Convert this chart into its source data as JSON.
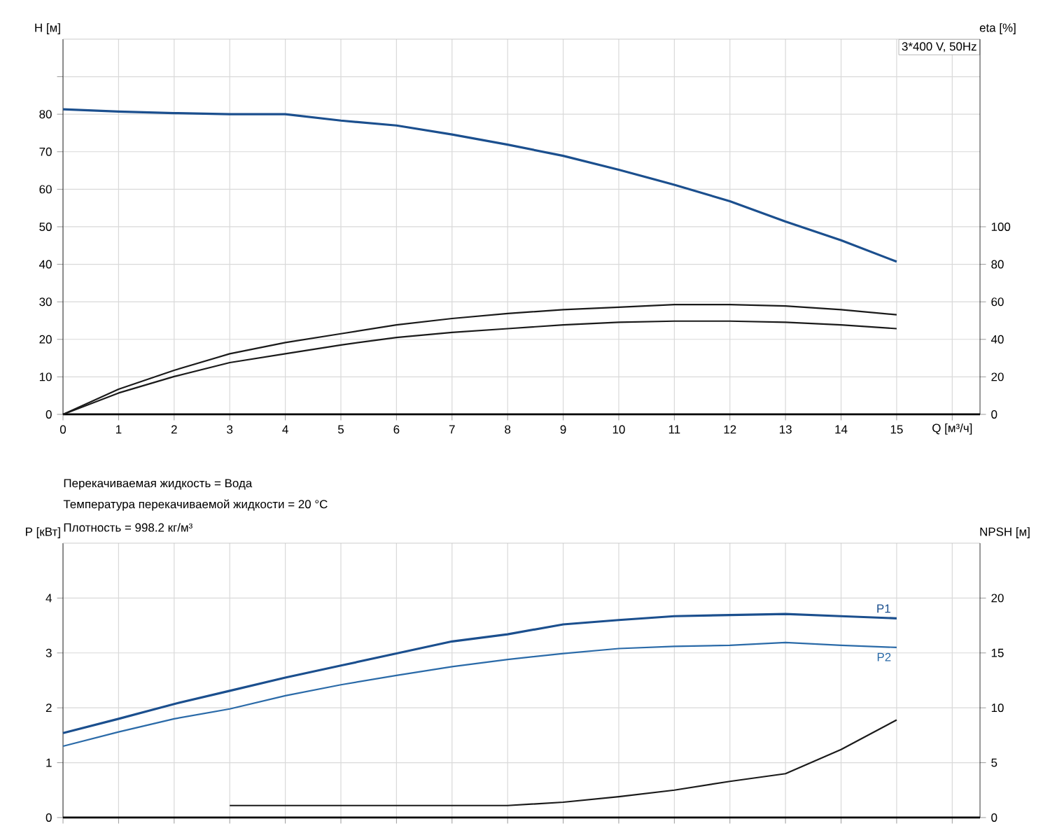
{
  "chart_data": [
    {
      "type": "line",
      "annotations": [
        "3*400 V, 50Hz"
      ],
      "xlabel": "Q [м³/ч]",
      "ylabel": "H [м]",
      "y2label": "eta [%]",
      "x": [
        0,
        1,
        2,
        3,
        4,
        5,
        6,
        7,
        8,
        9,
        10,
        11,
        12,
        13,
        14,
        15
      ],
      "xlim": [
        0,
        16.5
      ],
      "xticks": [
        0,
        1,
        2,
        3,
        4,
        5,
        6,
        7,
        8,
        9,
        10,
        11,
        12,
        13,
        14,
        15,
        {
          "value": 16,
          "label": null
        }
      ],
      "ylim": [
        0,
        100
      ],
      "yticks": [
        0,
        10,
        20,
        30,
        40,
        50,
        60,
        70,
        80,
        {
          "value": 90,
          "label": null
        }
      ],
      "y2lim": [
        0,
        200
      ],
      "y2ticks": [
        0,
        20,
        40,
        60,
        80,
        100
      ],
      "grid": true,
      "series": [
        {
          "color": "#1b4f8e",
          "values": [
            81.3,
            80.7,
            80.3,
            80.0,
            80.0,
            78.3,
            77.0,
            74.6,
            71.9,
            68.9,
            65.2,
            61.2,
            56.8,
            51.4,
            46.4,
            40.7
          ]
        },
        {
          "color": "#1a1a1a",
          "axis": "y2",
          "values": [
            0,
            13.4,
            23.5,
            32.3,
            38.3,
            43.0,
            47.7,
            51.1,
            53.8,
            55.8,
            57.1,
            58.5,
            58.5,
            57.8,
            55.8,
            53.1
          ]
        },
        {
          "color": "#1a1a1a",
          "axis": "y2",
          "values": [
            0,
            11.4,
            20.2,
            27.6,
            32.3,
            37.0,
            41.0,
            43.7,
            45.7,
            47.7,
            49.1,
            49.7,
            49.7,
            49.1,
            47.7,
            45.7
          ]
        }
      ]
    },
    {
      "type": "line",
      "annotations": [
        "Перекачиваемая жидкость = Вода",
        "Температура перекачиваемой жидкости = 20 °C",
        "Плотность = 998.2 кг/м³"
      ],
      "ylabel": "P [кВт]",
      "y2label": "NPSH [м]",
      "x": [
        0,
        1,
        2,
        3,
        4,
        5,
        6,
        7,
        8,
        9,
        10,
        11,
        12,
        13,
        14,
        15
      ],
      "xlim": [
        0,
        16.5
      ],
      "xticks": [
        0,
        1,
        2,
        3,
        4,
        5,
        6,
        7,
        8,
        9,
        10,
        11,
        12,
        13,
        14,
        15,
        16
      ],
      "tick_labels": "y",
      "ylim": [
        0,
        5
      ],
      "yticks": [
        0,
        1,
        2,
        3,
        4
      ],
      "y2lim": [
        0,
        25
      ],
      "y2ticks": [
        0,
        5,
        10,
        15,
        20
      ],
      "grid": true,
      "series": [
        {
          "name": "P1",
          "color": "#1b4f8e",
          "values": [
            1.54,
            1.8,
            2.07,
            2.31,
            2.55,
            2.77,
            2.99,
            3.21,
            3.34,
            3.52,
            3.6,
            3.67,
            3.69,
            3.71,
            3.67,
            3.63
          ]
        },
        {
          "name": "P2",
          "color": "#2a6aa8",
          "values": [
            1.3,
            1.56,
            1.8,
            1.98,
            2.22,
            2.42,
            2.59,
            2.75,
            2.88,
            2.99,
            3.08,
            3.12,
            3.14,
            3.19,
            3.14,
            3.1
          ]
        },
        {
          "color": "#1a1a1a",
          "axis": "y2",
          "values": [
            null,
            null,
            null,
            1.1,
            1.1,
            1.1,
            1.1,
            1.1,
            1.1,
            1.4,
            1.9,
            2.5,
            3.3,
            4.0,
            6.2,
            8.9
          ]
        }
      ]
    }
  ]
}
